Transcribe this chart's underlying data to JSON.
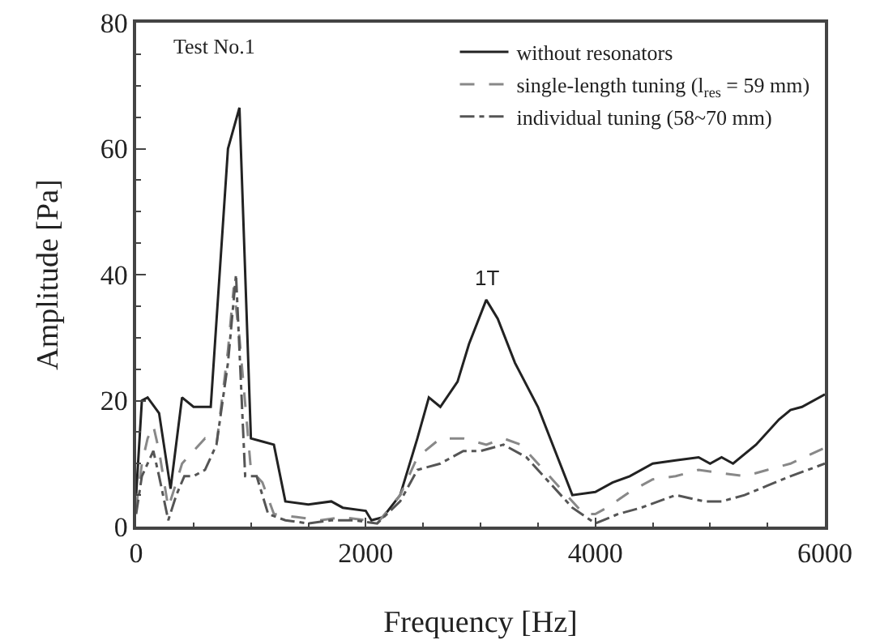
{
  "chart_data": {
    "type": "line",
    "xlabel": "Frequency [Hz]",
    "ylabel": "Amplitude [Pa]",
    "xlim": [
      0,
      6000
    ],
    "xticks": [
      0,
      2000,
      4000,
      6000
    ],
    "ylim": [
      0,
      80
    ],
    "yticks": [
      0,
      20,
      40,
      60,
      80
    ],
    "grid": false,
    "legend": "top right",
    "marker": "none",
    "annotations": [
      "Test No.1",
      {
        "text": "1T",
        "x": 3050,
        "y": 36
      }
    ],
    "series": [
      {
        "name": "without resonators",
        "color": "#222222",
        "line_style": "solid",
        "x": [
          0,
          50,
          100,
          200,
          300,
          400,
          500,
          650,
          800,
          900,
          1000,
          1100,
          1200,
          1300,
          1500,
          1700,
          1800,
          2000,
          2050,
          2150,
          2300,
          2450,
          2550,
          2650,
          2800,
          2900,
          3050,
          3150,
          3300,
          3500,
          3800,
          4000,
          4150,
          4300,
          4500,
          4700,
          4900,
          5000,
          5100,
          5200,
          5400,
          5600,
          5700,
          5800,
          6000
        ],
        "values": [
          5,
          20,
          20.5,
          18,
          6,
          20.5,
          19,
          19,
          60,
          66.5,
          14,
          13.5,
          13,
          4,
          3.5,
          4,
          3,
          2.5,
          1,
          1.5,
          5,
          14,
          20.5,
          19,
          23,
          29,
          36,
          33,
          26,
          19,
          5,
          5.5,
          7,
          8,
          10,
          10.5,
          11,
          10,
          11,
          10,
          13,
          17,
          18.5,
          19,
          21
        ]
      },
      {
        "name": "single-length tuning (l$_{res}$ = 59 mm)",
        "color": "#888888",
        "line_style": "dashed",
        "x": [
          0,
          50,
          100,
          150,
          200,
          280,
          350,
          400,
          500,
          600,
          700,
          800,
          850,
          900,
          1000,
          1100,
          1200,
          1400,
          1600,
          1800,
          2000,
          2100,
          2300,
          2450,
          2650,
          2850,
          3050,
          3200,
          3350,
          3500,
          3700,
          3900,
          4000,
          4100,
          4300,
          4500,
          4700,
          4900,
          5100,
          5300,
          5500,
          5700,
          6000
        ],
        "values": [
          3,
          10,
          14,
          16,
          12,
          3,
          7,
          10,
          12,
          14,
          13,
          28,
          38,
          30,
          9,
          7,
          2,
          1.5,
          1,
          1.5,
          1,
          0.5,
          5,
          11,
          14,
          14,
          13,
          14,
          13,
          10,
          6,
          2,
          2,
          3,
          5.5,
          7.5,
          8,
          9,
          8.5,
          8,
          9,
          10,
          12.5
        ]
      },
      {
        "name": "individual tuning (58~70 mm)",
        "color": "#555555",
        "line_style": "dashdot",
        "x": [
          0,
          50,
          150,
          200,
          280,
          350,
          420,
          500,
          600,
          700,
          800,
          870,
          950,
          1050,
          1150,
          1300,
          1500,
          1700,
          1900,
          2100,
          2300,
          2450,
          2650,
          2850,
          3000,
          3200,
          3400,
          3600,
          3800,
          4000,
          4200,
          4400,
          4700,
          4950,
          5100,
          5300,
          5500,
          5700,
          6000
        ],
        "values": [
          2,
          8,
          12,
          8,
          1,
          5,
          8,
          8,
          9,
          13,
          26,
          40,
          8,
          8,
          2,
          1,
          0.5,
          1,
          1,
          0.5,
          4,
          9,
          10,
          12,
          12,
          13,
          11,
          7,
          3,
          0.5,
          2,
          3,
          5,
          4,
          4,
          5,
          6.5,
          8,
          10
        ]
      }
    ]
  }
}
